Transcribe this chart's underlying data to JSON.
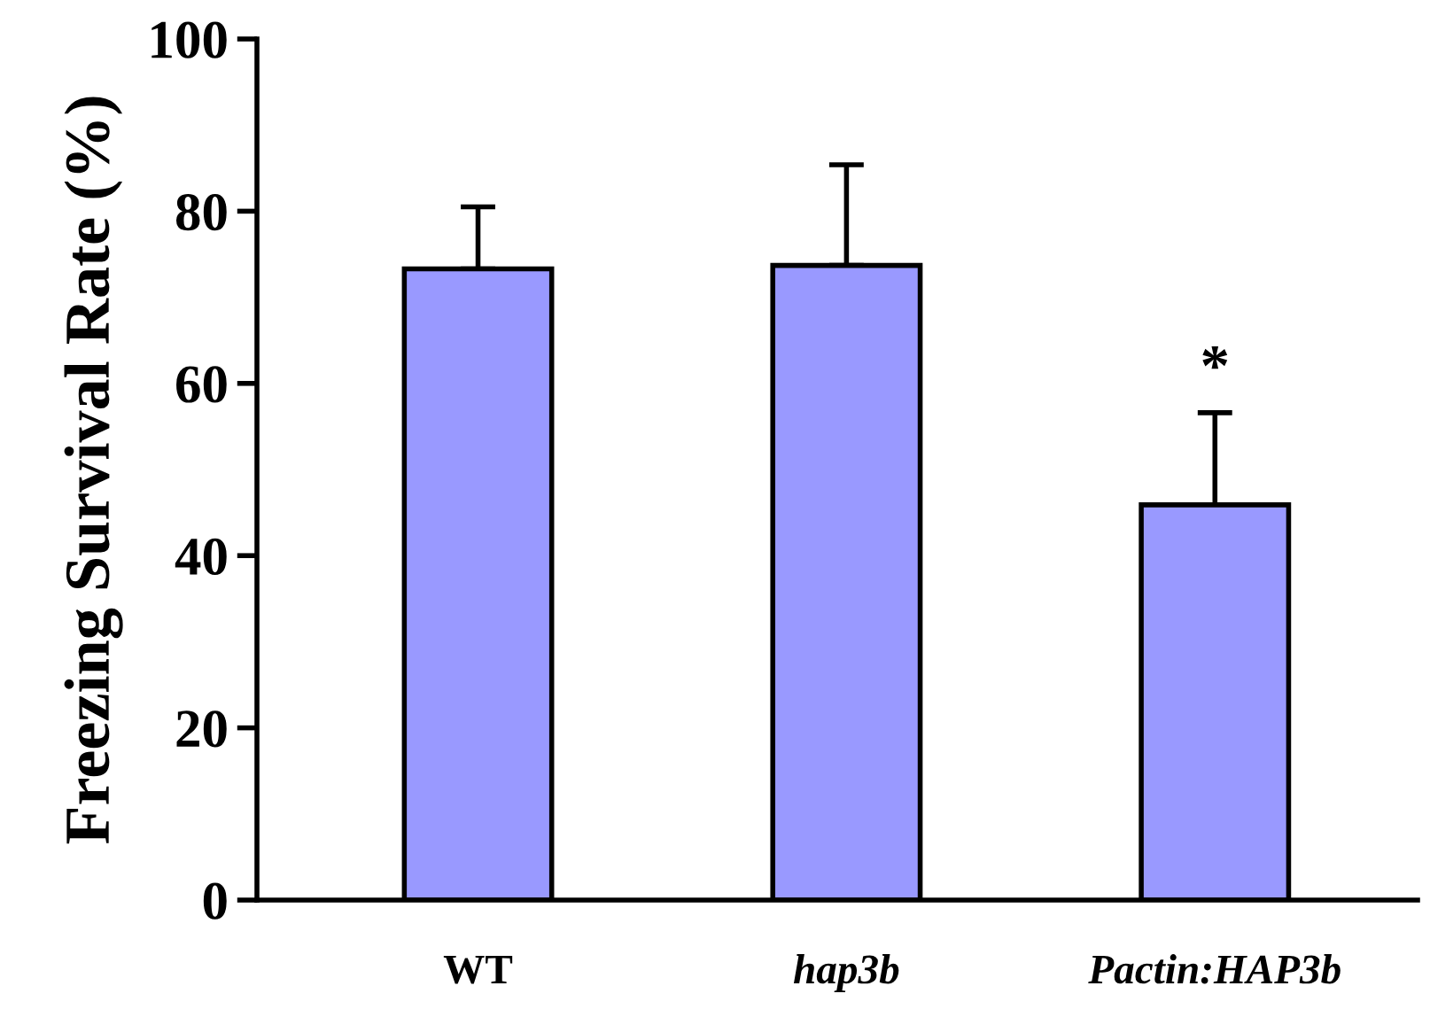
{
  "chart_data": {
    "type": "bar",
    "ylabel": "Freezing Survival Rate (%)",
    "categories": [
      "WT",
      "hap3b",
      "Pactin:HAP3b"
    ],
    "values": [
      73.3,
      73.7,
      45.9
    ],
    "errors": [
      [
        73.3,
        80.5
      ],
      [
        73.7,
        85.4
      ],
      [
        45.9,
        56.6
      ]
    ],
    "color": "#9999ff",
    "ylim": [
      0,
      100
    ],
    "yticks": [
      0,
      20,
      40,
      60,
      80,
      100
    ],
    "grid": false,
    "annotations": [
      {
        "text": "*",
        "x": "Pactin:HAP3b",
        "y": 56.6
      }
    ]
  }
}
